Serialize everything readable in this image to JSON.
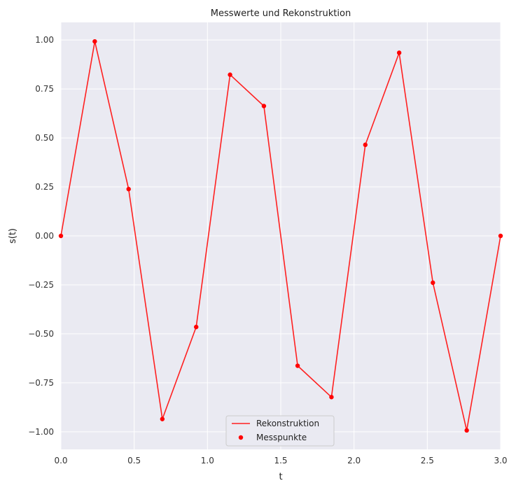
{
  "chart_data": {
    "type": "line",
    "title": "Messwerte und Rekonstruktion",
    "xlabel": "t",
    "ylabel": "s(t)",
    "xlim": [
      0.0,
      3.0
    ],
    "ylim": [
      -1.09,
      1.09
    ],
    "xticks": [
      0.0,
      0.5,
      1.0,
      1.5,
      2.0,
      2.5,
      3.0
    ],
    "xtick_labels": [
      "0.0",
      "0.5",
      "1.0",
      "1.5",
      "2.0",
      "2.5",
      "3.0"
    ],
    "yticks": [
      1.0,
      0.75,
      0.5,
      0.25,
      0.0,
      -0.25,
      -0.5,
      -0.75,
      -1.0
    ],
    "ytick_labels": [
      "1.00",
      "0.75",
      "0.50",
      "0.25",
      "0.00",
      "−0.25",
      "−0.50",
      "−0.75",
      "−1.00"
    ],
    "grid": true,
    "legend_position": "bottom-center",
    "background_color": "#eaeaf2",
    "series": [
      {
        "name": "Rekonstruktion",
        "kind": "line",
        "color": "#ff2020",
        "x": [
          0.0,
          0.231,
          0.462,
          0.692,
          0.923,
          1.154,
          1.385,
          1.615,
          1.846,
          2.077,
          2.308,
          2.538,
          2.769,
          3.0
        ],
        "y": [
          0.0,
          0.993,
          0.239,
          -0.935,
          -0.465,
          0.823,
          0.663,
          -0.663,
          -0.823,
          0.465,
          0.935,
          -0.239,
          -0.993,
          0.0
        ]
      },
      {
        "name": "Messpunkte",
        "kind": "scatter",
        "color": "#ff0000",
        "x": [
          0.0,
          0.231,
          0.462,
          0.692,
          0.923,
          1.154,
          1.385,
          1.615,
          1.846,
          2.077,
          2.308,
          2.538,
          2.769,
          3.0
        ],
        "y": [
          0.0,
          0.993,
          0.239,
          -0.935,
          -0.465,
          0.823,
          0.663,
          -0.663,
          -0.823,
          0.465,
          0.935,
          -0.239,
          -0.993,
          0.0
        ]
      }
    ]
  }
}
